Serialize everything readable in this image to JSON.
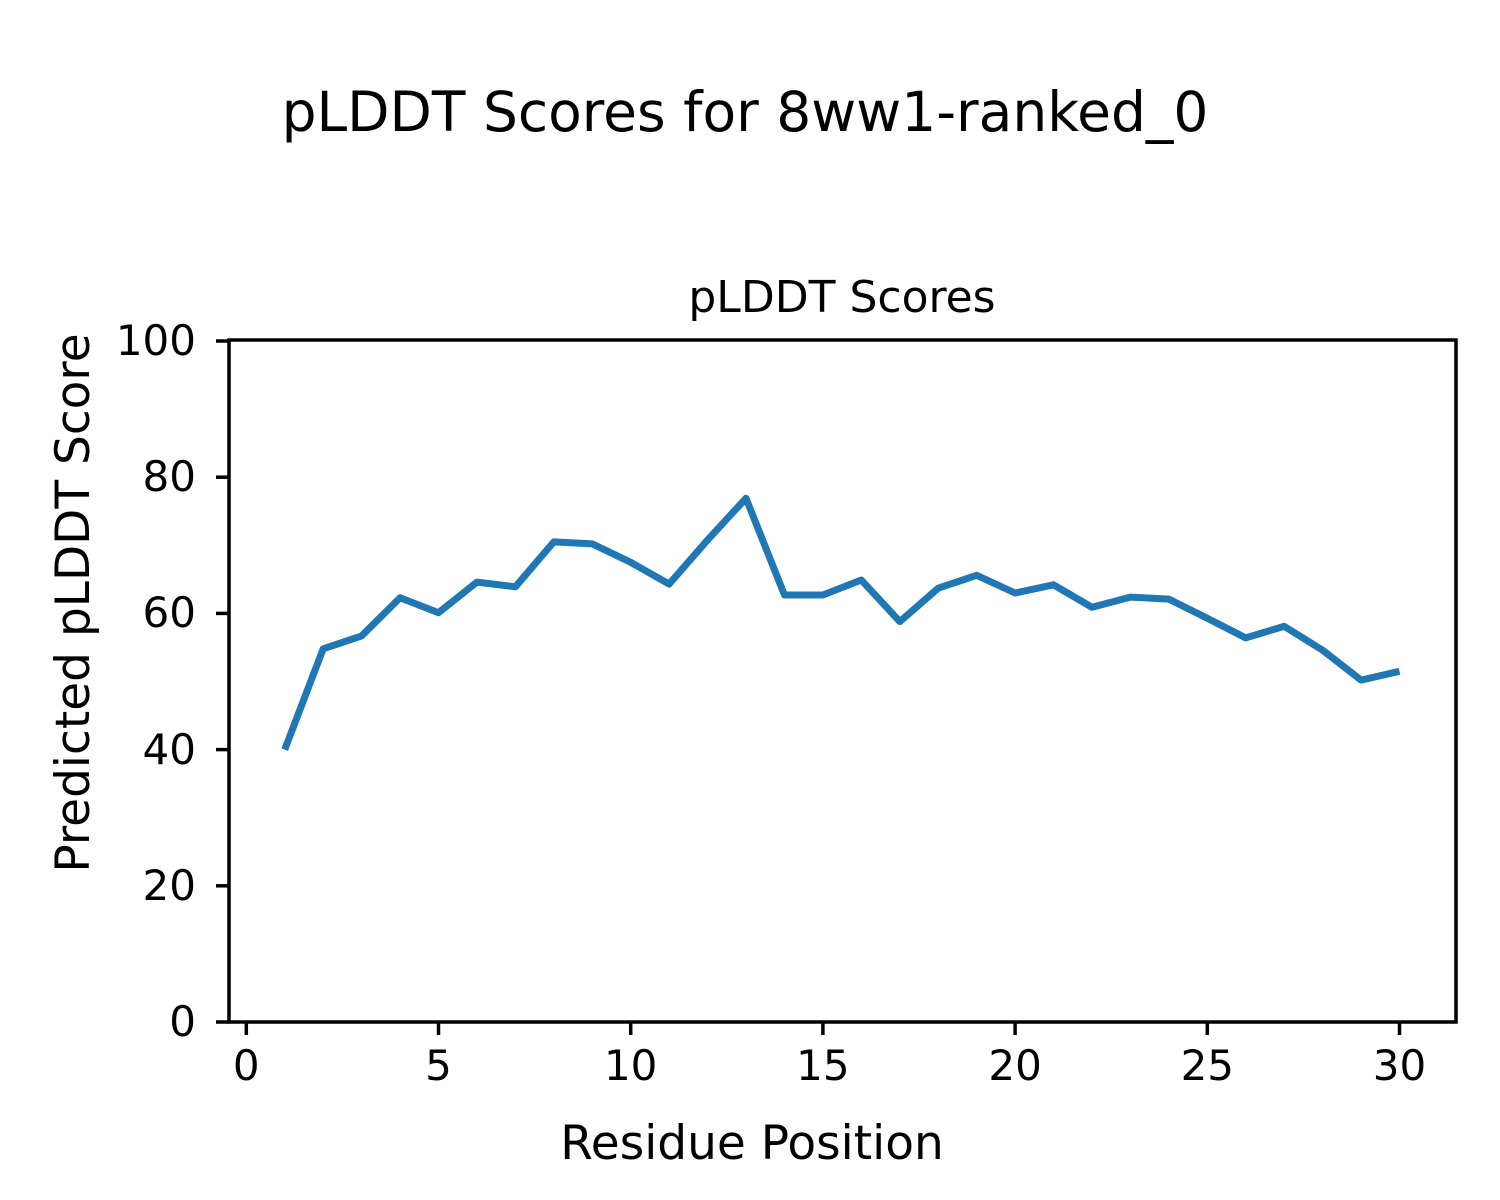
{
  "figure": {
    "suptitle": "pLDDT Scores for 8ww1-ranked_0",
    "background_color": "#ffffff",
    "text_color": "#000000"
  },
  "chart_data": {
    "type": "line",
    "title": "pLDDT Scores",
    "xlabel": "Residue Position",
    "ylabel": "Predicted pLDDT Score",
    "x": [
      1,
      2,
      3,
      4,
      5,
      6,
      7,
      8,
      9,
      10,
      11,
      12,
      13,
      14,
      15,
      16,
      17,
      18,
      19,
      20,
      21,
      22,
      23,
      24,
      25,
      26,
      27,
      28,
      29,
      30
    ],
    "y": [
      40.0,
      54.8,
      56.7,
      62.3,
      60.1,
      64.6,
      63.9,
      70.5,
      70.2,
      67.5,
      64.3,
      70.8,
      76.9,
      62.7,
      62.7,
      64.9,
      58.8,
      63.7,
      65.6,
      63.0,
      64.2,
      60.9,
      62.4,
      62.1,
      59.3,
      56.4,
      58.1,
      54.6,
      50.2,
      51.5
    ],
    "xticks": [
      0,
      5,
      10,
      15,
      20,
      25,
      30
    ],
    "yticks": [
      0,
      20,
      40,
      60,
      80,
      100
    ],
    "xlim": [
      -0.45,
      31.45
    ],
    "ylim": [
      0,
      100
    ],
    "line_color": "#1f77b4",
    "spine_color": "#000000",
    "grid": false,
    "legend": null
  }
}
